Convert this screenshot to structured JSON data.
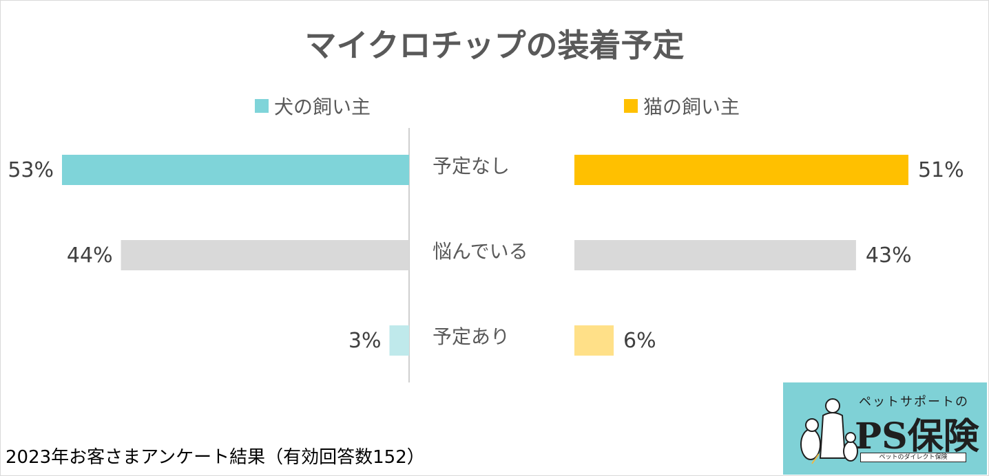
{
  "chart_data": {
    "type": "bar",
    "title": "マイクロチップの装着予定",
    "categories": [
      "予定なし",
      "悩んでいる",
      "予定あり"
    ],
    "series": [
      {
        "name": "犬の飼い主",
        "values": [
          53,
          44,
          3
        ],
        "labels": [
          "53%",
          "44%",
          "3%"
        ]
      },
      {
        "name": "猫の飼い主",
        "values": [
          51,
          43,
          6
        ],
        "labels": [
          "51%",
          "43%",
          "6%"
        ]
      }
    ],
    "colors": {
      "dog": [
        "#7fd4d9",
        "#d9d9d9",
        "#bfe9eb"
      ],
      "cat": [
        "#ffc000",
        "#d9d9d9",
        "#ffe088"
      ]
    }
  },
  "footer": "2023年お客さまアンケート結果（有効回答数152）",
  "logo": {
    "subtitle": "ペットサポートの",
    "name": "PS保険",
    "tagline": "ペットのダイレクト保険"
  }
}
